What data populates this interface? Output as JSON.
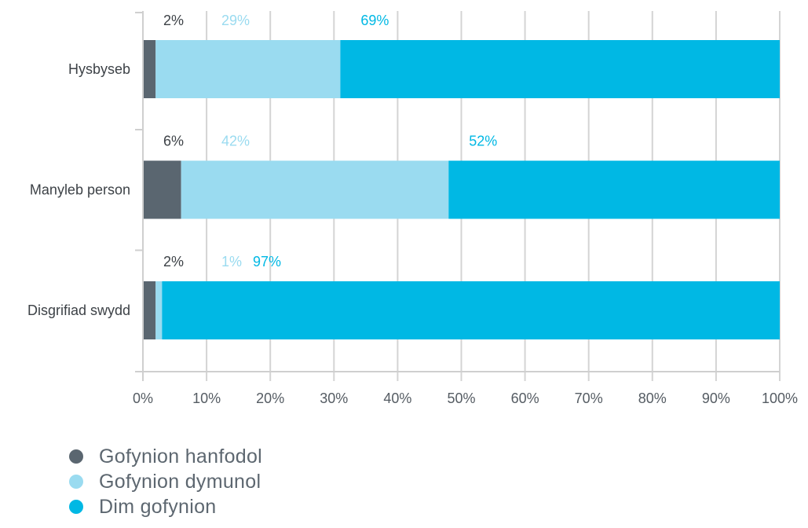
{
  "chart_data": {
    "type": "bar",
    "orientation": "horizontal",
    "stacked": true,
    "categories": [
      "Hysbyseb",
      "Manyleb person",
      "Disgrifiad swydd"
    ],
    "series": [
      {
        "name": "Gofynion hanfodol",
        "values": [
          2,
          6,
          2
        ],
        "labels": [
          "2%",
          "6%",
          "2%"
        ],
        "color": "#5a6670"
      },
      {
        "name": "Gofynion dymunol",
        "values": [
          29,
          42,
          1
        ],
        "labels": [
          "29%",
          "42%",
          "1%"
        ],
        "color": "#9adbf0"
      },
      {
        "name": "Dim gofynion",
        "values": [
          69,
          52,
          97
        ],
        "labels": [
          "69%",
          "52%",
          "97%"
        ],
        "color": "#00b8e4"
      }
    ],
    "xlim": [
      0,
      100
    ],
    "xticks": [
      0,
      10,
      20,
      30,
      40,
      50,
      60,
      70,
      80,
      90,
      100
    ],
    "xtick_labels": [
      "0%",
      "10%",
      "20%",
      "30%",
      "40%",
      "50%",
      "60%",
      "70%",
      "80%",
      "90%",
      "100%"
    ],
    "grid": true,
    "legend_position": "bottom-left",
    "title": "",
    "xlabel": "",
    "ylabel": ""
  },
  "legend": {
    "items": [
      {
        "label": "Gofynion hanfodol",
        "color": "#5a6670"
      },
      {
        "label": "Gofynion dymunol",
        "color": "#9adbf0"
      },
      {
        "label": "Dim gofynion",
        "color": "#00b8e4"
      }
    ]
  }
}
